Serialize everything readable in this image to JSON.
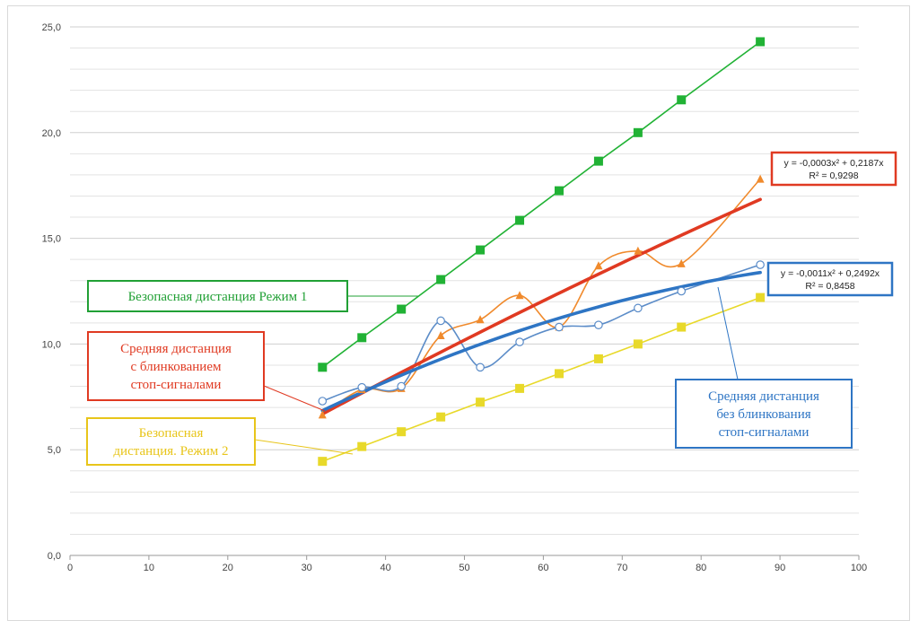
{
  "chart_data": {
    "type": "line",
    "xlim": [
      0,
      100
    ],
    "ylim": [
      0,
      25
    ],
    "x_ticks": [
      "0",
      "10",
      "20",
      "30",
      "40",
      "50",
      "60",
      "70",
      "80",
      "90",
      "100"
    ],
    "y_ticks": [
      "0,0",
      "5,0",
      "10,0",
      "15,0",
      "20,0",
      "25,0"
    ],
    "grid": "horizontal",
    "series": [
      {
        "key": "safe1",
        "color": "#21b235",
        "marker": "square",
        "x": [
          32,
          37,
          42,
          47,
          52,
          57,
          62,
          67,
          72,
          77.5,
          87.5
        ],
        "y": [
          8.9,
          10.3,
          11.65,
          13.05,
          14.45,
          15.85,
          17.25,
          18.65,
          20.0,
          21.55,
          24.3
        ]
      },
      {
        "key": "safe2",
        "color": "#e8d92a",
        "marker": "square",
        "x": [
          32,
          37,
          42,
          47,
          52,
          57,
          62,
          67,
          72,
          77.5,
          87.5
        ],
        "y": [
          4.45,
          5.15,
          5.85,
          6.55,
          7.25,
          7.9,
          8.6,
          9.3,
          10.0,
          10.8,
          12.2
        ]
      },
      {
        "key": "blink",
        "color": "#f08a2c",
        "marker": "triangle",
        "smooth": true,
        "x": [
          32,
          37,
          42,
          47,
          52,
          57,
          62,
          67,
          72,
          77.5,
          87.5
        ],
        "y": [
          6.65,
          7.85,
          7.9,
          10.4,
          11.15,
          12.3,
          10.8,
          13.7,
          14.4,
          13.8,
          17.8
        ]
      },
      {
        "key": "noblink",
        "color": "#5b8cc8",
        "marker": "circle",
        "smooth": true,
        "x": [
          32,
          37,
          42,
          47,
          52,
          57,
          62,
          67,
          72,
          77.5,
          87.5
        ],
        "y": [
          7.3,
          7.95,
          8.0,
          11.1,
          8.9,
          10.1,
          10.8,
          10.9,
          11.7,
          12.5,
          13.75
        ]
      }
    ],
    "trendlines": [
      {
        "key": "trend_blink",
        "color": "#e03a22",
        "a": -0.0003,
        "b": 0.2187,
        "c": 0,
        "x_range": [
          32,
          87.5
        ]
      },
      {
        "key": "trend_noblink",
        "color": "#2e75c4",
        "a": -0.0011,
        "b": 0.2492,
        "c": 0,
        "x_range": [
          32,
          87.5
        ]
      }
    ],
    "equation_boxes": [
      {
        "key": "eq_blink",
        "line1": "y = -0,0003x² + 0,2187x",
        "line2": "R² = 0,9298",
        "border": "#e03a22"
      },
      {
        "key": "eq_noblink",
        "line1": "y = -0,0011x² + 0,2492x",
        "line2": "R² = 0,8458",
        "border": "#2e75c4"
      }
    ],
    "annotations": [
      {
        "key": "safe1_label",
        "lines": [
          "Безопасная дистанция Режим 1"
        ],
        "color": "#21a035"
      },
      {
        "key": "blink_label",
        "lines": [
          "Средняя дистанция",
          "с блинкованием",
          "стоп-сигналами"
        ],
        "color": "#e03a22"
      },
      {
        "key": "safe2_label",
        "lines": [
          "Безопасная",
          "дистанция. Режим 2"
        ],
        "color": "#e8c51a"
      },
      {
        "key": "noblink_label",
        "lines": [
          "Средняя дистанция",
          "без блинкования",
          "стоп-сигналами"
        ],
        "color": "#2e75c4"
      }
    ]
  }
}
